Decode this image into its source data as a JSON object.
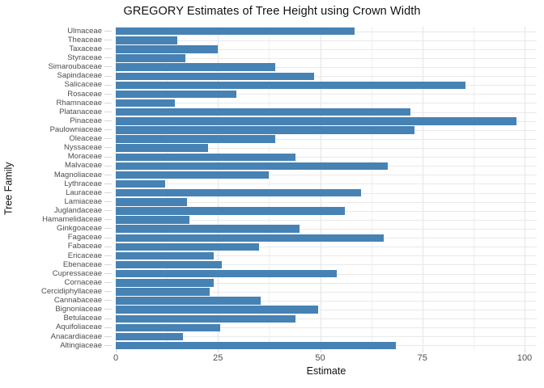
{
  "title": "GREGORY Estimates of Tree Height using Crown Width",
  "chart_data": {
    "type": "bar",
    "orientation": "horizontal",
    "title": "GREGORY Estimates of Tree Height using Crown Width",
    "xlabel": "Estimate",
    "ylabel": "Tree Family",
    "xlim": [
      0,
      103
    ],
    "x_ticks": [
      0,
      25,
      50,
      75,
      100
    ],
    "x_minor_ticks": [
      12.5,
      37.5,
      62.5,
      87.5
    ],
    "grid": "major and minor vertical gridlines, horizontal gridline per category, light gray on white",
    "legend": "none",
    "bar_color": "#4682B4",
    "grid_major_color": "#e4e4e4",
    "grid_minor_color": "#efefef",
    "row_grid_color": "#e9e9e9",
    "tick_color": "#d6d6d6",
    "axis_text_color": "#4d4d4d",
    "categories": [
      "Ulmaceae",
      "Theaceae",
      "Taxaceae",
      "Styraceae",
      "Simaroubaceae",
      "Sapindaceae",
      "Salicaceae",
      "Rosaceae",
      "Rhamnaceae",
      "Platanaceae",
      "Pinaceae",
      "Paulowniaceae",
      "Oleaceae",
      "Nyssaceae",
      "Moraceae",
      "Malvaceae",
      "Magnoliaceae",
      "Lythraceae",
      "Lauraceae",
      "Lamiaceae",
      "Juglandaceae",
      "Hamamelidaceae",
      "Ginkgoaceae",
      "Fagaceae",
      "Fabaceae",
      "Ericaceae",
      "Ebenaceae",
      "Cupressaceae",
      "Cornaceae",
      "Cercidiphyllaceae",
      "Cannabaceae",
      "Bignoniaceae",
      "Betulaceae",
      "Aquifoliaceae",
      "Anacardiaceae",
      "Altingiaceae"
    ],
    "values": [
      58.5,
      15,
      25,
      17,
      39,
      48.5,
      85.5,
      29.5,
      14.5,
      72,
      98,
      73,
      39,
      22.5,
      44,
      66.5,
      37.5,
      12,
      60,
      17.5,
      56,
      18,
      45,
      65.5,
      35,
      24,
      26,
      54,
      24,
      23,
      35.5,
      49.5,
      44,
      25.5,
      16.5,
      68.5
    ]
  }
}
